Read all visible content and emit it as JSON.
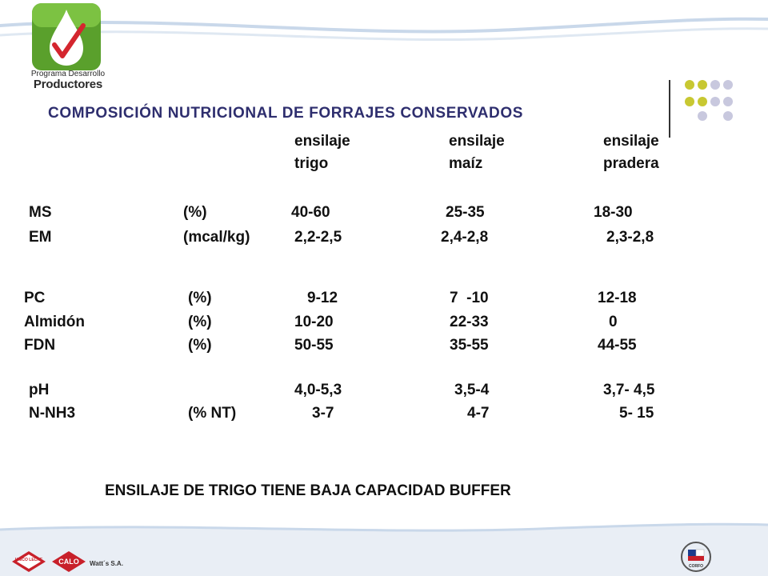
{
  "branding": {
    "program_line1": "Programa Desarrollo",
    "program_line2": "Productores",
    "footer_logo1": "UNICO LECHE",
    "footer_logo2": "CALO",
    "footer_text": "Watt´s S.A.",
    "corfo_logo": "CORFO"
  },
  "title": "COMPOSICIÓN NUTRICIONAL DE FORRAJES  CONSERVADOS",
  "columns": [
    {
      "line1": "ensilaje",
      "line2": "trigo"
    },
    {
      "line1": "ensilaje",
      "line2": "maíz"
    },
    {
      "line1": "ensilaje",
      "line2": "pradera"
    }
  ],
  "rows": [
    {
      "param": "MS",
      "unit": "(%)",
      "v1": "40-60",
      "v2": "25-35",
      "v3": "18-30"
    },
    {
      "param": "EM",
      "unit": "(mcal/kg)",
      "v1": "2,2-2,5",
      "v2": "2,4-2,8",
      "v3": "2,3-2,8"
    },
    {
      "param": "PC",
      "unit": "(%)",
      "v1": "9-12",
      "v2": "7  -10",
      "v3": "12-18"
    },
    {
      "param": "Almidón",
      "unit": "(%)",
      "v1": "10-20",
      "v2": "22-33",
      "v3": "0"
    },
    {
      "param": "FDN",
      "unit": "(%)",
      "v1": "50-55",
      "v2": "35-55",
      "v3": "44-55"
    },
    {
      "param": "pH",
      "unit": "",
      "v1": "4,0-5,3",
      "v2": "3,5-4",
      "v3": "3,7- 4,5"
    },
    {
      "param": "N-NH3",
      "unit": "(% NT)",
      "v1": "3-7",
      "v2": "4-7",
      "v3": "5- 15"
    }
  ],
  "conclusion": "ENSILAJE DE TRIGO TIENE BAJA CAPACIDAD BUFFER",
  "colors": {
    "title": "#2e2e6e",
    "wave": "#c9d8ea",
    "green": "#5aa02c",
    "footer": "#e9eef5",
    "dot_yellow": "#c8c832",
    "dot_lavender": "#c8c8de"
  },
  "icons": [
    "water-drop-check-logo",
    "decorative-dots",
    "unico-leche-logo",
    "calo-logo",
    "corfo-logo"
  ]
}
